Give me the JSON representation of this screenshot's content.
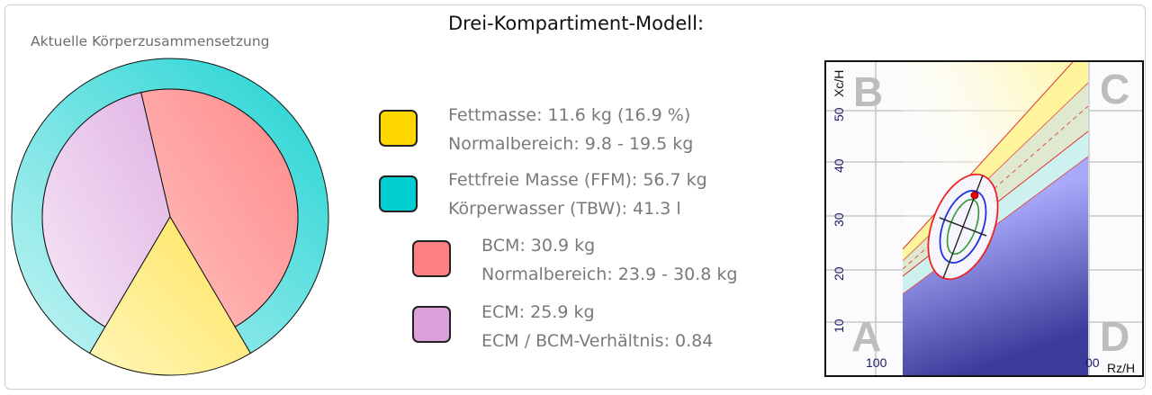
{
  "title": "Drei-Kompartiment-Modell:",
  "chart_data": [
    {
      "type": "pie",
      "title": "Aktuelle Körperzusammensetzung",
      "slices": [
        {
          "name": "Fettmasse",
          "value": 11.6,
          "color": "#FFD700"
        },
        {
          "name": "BCM",
          "value": 30.9,
          "color": "#FF8080"
        },
        {
          "name": "ECM",
          "value": 25.9,
          "color": "#DDA0DD"
        }
      ],
      "ring": {
        "name": "Fettfreie Masse (FFM)",
        "value": 56.7,
        "color": "#00CED1"
      }
    },
    {
      "type": "scatter",
      "xlabel": "Rz/H",
      "ylabel": "Xc/H",
      "x_tick_labels": [
        "100",
        "00"
      ],
      "y_ticks": [
        10,
        20,
        30,
        40,
        50
      ],
      "quadrant_labels": [
        "A",
        "B",
        "C",
        "D"
      ],
      "grid": true,
      "tolerance_ellipses": [
        "50%",
        "75%",
        "95%"
      ]
    }
  ],
  "legend": [
    {
      "color": "#FFD700",
      "line1": "Fettmasse: 11.6 kg (16.9 %)",
      "line2": "Normalbereich: 9.8 - 19.5 kg"
    },
    {
      "color": "#00CED1",
      "line1": "Fettfreie Masse (FFM): 56.7 kg",
      "line2": "Körperwasser (TBW): 41.3 l"
    },
    {
      "color": "#FF8080",
      "line1": "BCM: 30.9 kg",
      "line2": "Normalbereich: 23.9 - 30.8 kg"
    },
    {
      "color": "#DDA0DD",
      "line1": "ECM: 25.9 kg",
      "line2": "ECM / BCM-Verhältnis: 0.84"
    }
  ]
}
